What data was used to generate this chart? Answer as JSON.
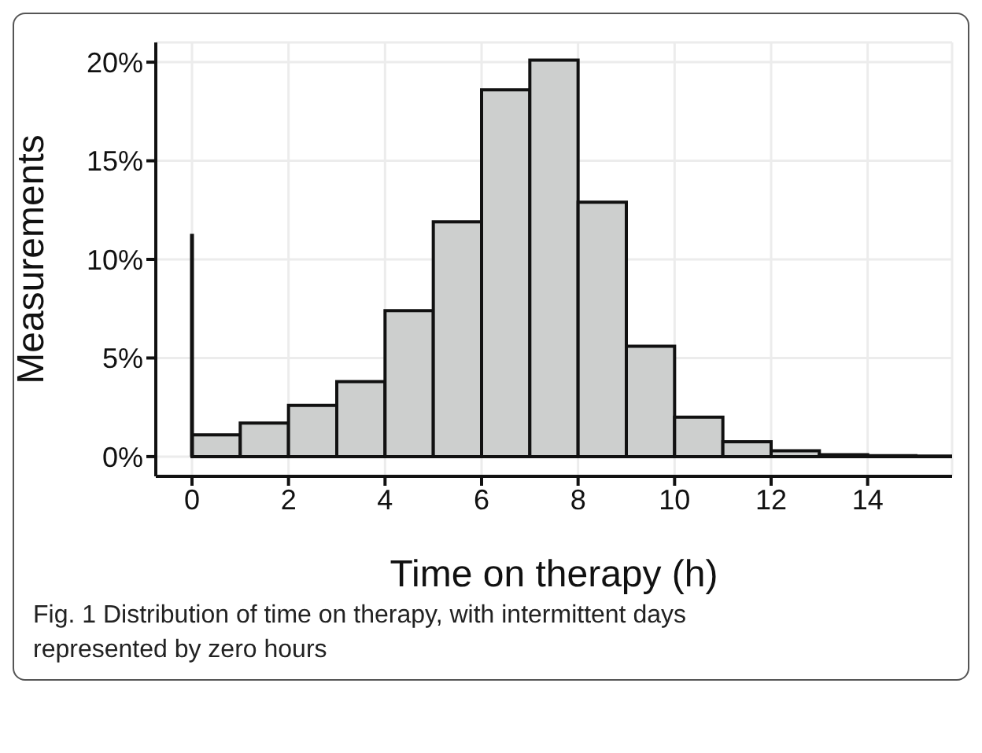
{
  "chart_data": {
    "type": "histogram",
    "xlabel": "Time on therapy (h)",
    "ylabel": "Measurements",
    "bins": [
      0,
      1,
      2,
      3,
      4,
      5,
      6,
      7,
      8,
      9,
      10,
      11,
      12,
      13,
      14,
      15,
      16
    ],
    "values": [
      1.1,
      1.7,
      2.6,
      3.8,
      7.4,
      11.9,
      18.6,
      20.1,
      12.9,
      5.6,
      2.0,
      0.75,
      0.3,
      0.1,
      0.05,
      0.03
    ],
    "color": "#cdcfce",
    "series": [
      {
        "type": "line",
        "x": [
          0,
          0
        ],
        "values": [
          0,
          11.3
        ],
        "color": "#111111"
      }
    ],
    "xlim": [
      -0.75,
      15.75
    ],
    "xticks": [
      0,
      2,
      4,
      6,
      8,
      10,
      12,
      14
    ],
    "ylim": [
      -1,
      21
    ],
    "yticks": [
      {
        "value": 0,
        "label": "0%"
      },
      {
        "value": 5,
        "label": "5%"
      },
      {
        "value": 10,
        "label": "10%"
      },
      {
        "value": 15,
        "label": "15%"
      },
      {
        "value": 20,
        "label": "20%"
      }
    ],
    "grid": true,
    "annotations": [
      "Fig. 1 Distribution of time on therapy, with intermittent days represented by zero hours"
    ]
  }
}
